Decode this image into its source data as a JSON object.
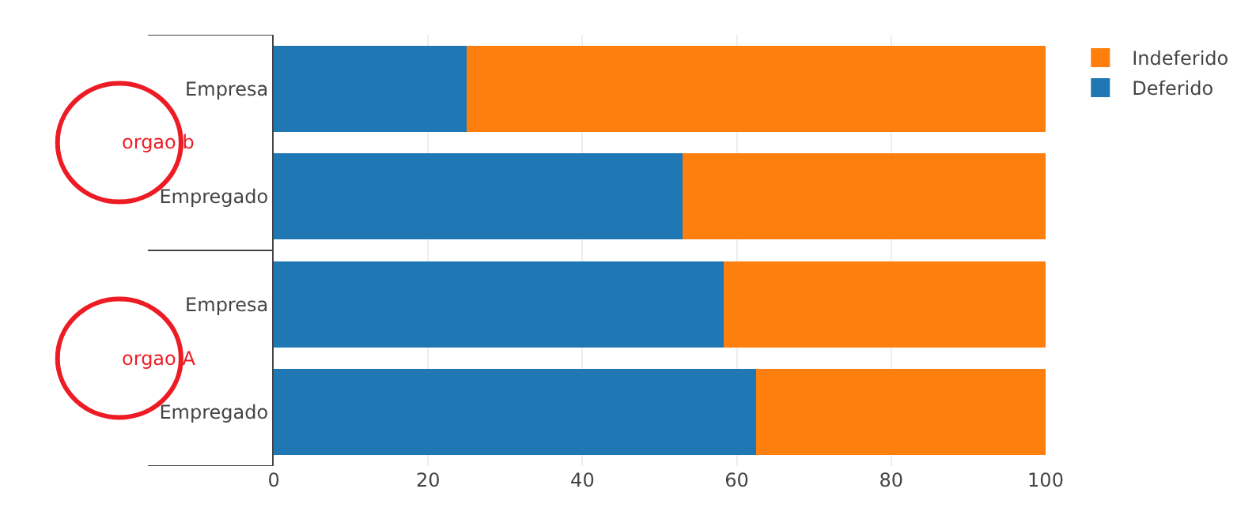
{
  "chart_data": {
    "type": "bar",
    "orientation": "horizontal",
    "stacked": true,
    "categories": [
      "Empresa",
      "Empregado",
      "Empresa",
      "Empregado"
    ],
    "series": [
      {
        "name": "Deferido",
        "color": "#1f77b4",
        "values": [
          25,
          53,
          58.3,
          62.5
        ]
      },
      {
        "name": "Indeferido",
        "color": "#ff7f0e",
        "values": [
          75,
          47,
          41.7,
          37.5
        ]
      }
    ],
    "xlim": [
      0,
      100
    ],
    "xticks": [
      0,
      20,
      40,
      60,
      80,
      100
    ],
    "grid": "x",
    "legend": "top right",
    "annotations": [
      "orgao b",
      "orgao A"
    ]
  }
}
